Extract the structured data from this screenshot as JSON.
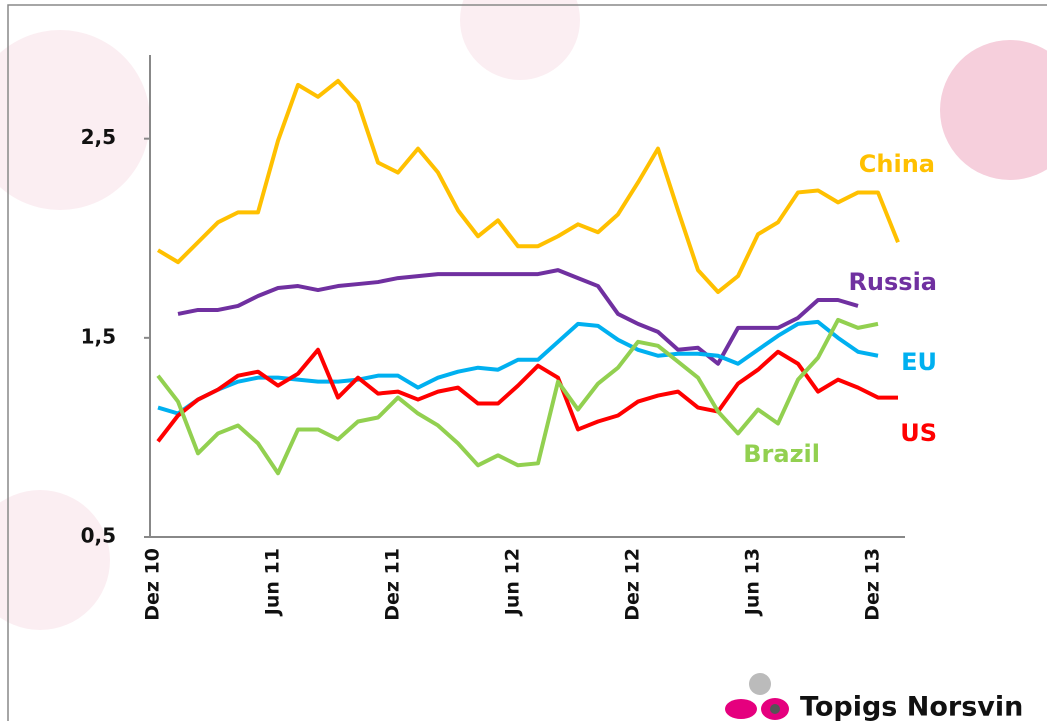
{
  "chart_data": {
    "type": "line",
    "categories": [
      "Dez 10",
      null,
      null,
      null,
      null,
      null,
      "Jun 11",
      null,
      null,
      null,
      null,
      null,
      "Dez 11",
      null,
      null,
      null,
      null,
      null,
      "Jun 12",
      null,
      null,
      null,
      null,
      null,
      "Dez 12",
      null,
      null,
      null,
      null,
      null,
      "Jun 13",
      null,
      null,
      null,
      null,
      null,
      "Dez 13",
      null
    ],
    "ylim": [
      0.5,
      2.9
    ],
    "yticks": [
      {
        "value": 0.5,
        "label": "0,5"
      },
      {
        "value": 1.5,
        "label": "1,5"
      },
      {
        "value": 2.5,
        "label": "2,5"
      }
    ],
    "grid": false,
    "series": [
      {
        "name": "China",
        "color": "#ffc000",
        "values": [
          1.94,
          1.88,
          1.98,
          2.08,
          2.13,
          2.13,
          2.49,
          2.77,
          2.71,
          2.79,
          2.68,
          2.38,
          2.33,
          2.45,
          2.33,
          2.14,
          2.01,
          2.09,
          1.96,
          1.96,
          2.01,
          2.07,
          2.03,
          2.12,
          2.28,
          2.45,
          2.14,
          1.84,
          1.73,
          1.81,
          2.02,
          2.08,
          2.23,
          2.24,
          2.18,
          2.23,
          2.23,
          1.98
        ]
      },
      {
        "name": "Russia",
        "color": "#7030a0",
        "values": [
          null,
          1.62,
          1.64,
          1.64,
          1.66,
          1.71,
          1.75,
          1.76,
          1.74,
          1.76,
          1.77,
          1.78,
          1.8,
          1.81,
          1.82,
          1.82,
          1.82,
          1.82,
          1.82,
          1.82,
          1.84,
          1.8,
          1.76,
          1.62,
          1.57,
          1.53,
          1.44,
          1.45,
          1.37,
          1.55,
          1.55,
          1.55,
          1.6,
          1.69,
          1.69,
          1.66,
          null,
          null
        ]
      },
      {
        "name": "EU",
        "color": "#00b0f0",
        "values": [
          1.15,
          1.12,
          1.19,
          1.24,
          1.28,
          1.3,
          1.3,
          1.29,
          1.28,
          1.28,
          1.29,
          1.31,
          1.31,
          1.25,
          1.3,
          1.33,
          1.35,
          1.34,
          1.39,
          1.39,
          1.48,
          1.57,
          1.56,
          1.49,
          1.44,
          1.41,
          1.42,
          1.42,
          1.41,
          1.37,
          1.44,
          1.51,
          1.57,
          1.58,
          1.5,
          1.43,
          1.41,
          null
        ]
      },
      {
        "name": "US",
        "color": "#ff0000",
        "values": [
          0.98,
          1.11,
          1.19,
          1.24,
          1.31,
          1.33,
          1.26,
          1.32,
          1.44,
          1.2,
          1.3,
          1.22,
          1.23,
          1.19,
          1.23,
          1.25,
          1.17,
          1.17,
          1.26,
          1.36,
          1.3,
          1.04,
          1.08,
          1.11,
          1.18,
          1.21,
          1.23,
          1.15,
          1.13,
          1.27,
          1.34,
          1.43,
          1.37,
          1.23,
          1.29,
          1.25,
          1.2,
          1.2
        ]
      },
      {
        "name": "Brazil",
        "color": "#92d050",
        "values": [
          1.31,
          1.18,
          0.92,
          1.02,
          1.06,
          0.97,
          0.82,
          1.04,
          1.04,
          0.99,
          1.08,
          1.1,
          1.2,
          1.12,
          1.06,
          0.97,
          0.86,
          0.91,
          0.86,
          0.87,
          1.28,
          1.14,
          1.27,
          1.35,
          1.48,
          1.46,
          1.38,
          1.3,
          1.13,
          1.02,
          1.14,
          1.07,
          1.29,
          1.4,
          1.59,
          1.55,
          1.57,
          null
        ]
      }
    ]
  },
  "brand": "Topigs Norsvin"
}
